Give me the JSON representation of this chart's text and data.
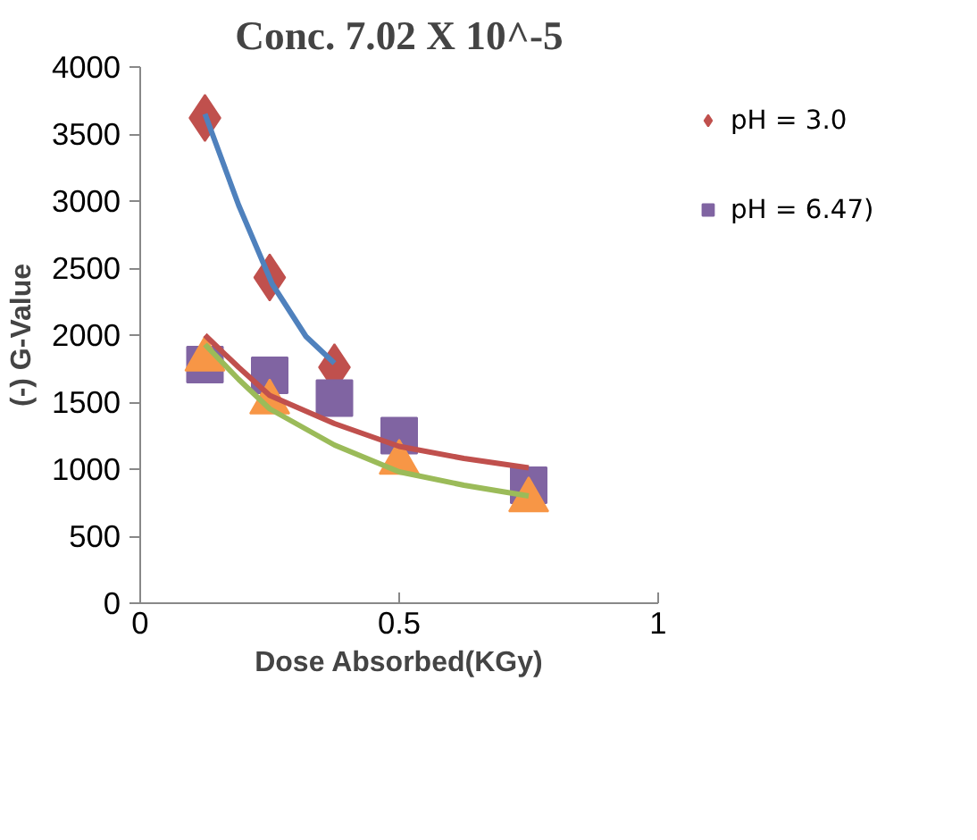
{
  "chart_data": {
    "type": "scatter",
    "title": "Conc. 7.02 X 10^-5",
    "xlabel": "Dose Absorbed(KGy)",
    "ylabel": "(-) G-Value",
    "xlim": [
      0,
      1
    ],
    "xticks": [
      0,
      0.5,
      1
    ],
    "ylim": [
      0,
      4000
    ],
    "yticks": [
      0,
      500,
      1000,
      1500,
      2000,
      2500,
      3000,
      3500,
      4000
    ],
    "grid": false,
    "legend": "top right",
    "series": [
      {
        "type": "line",
        "color": "#4f81bd",
        "marker": "none",
        "x": [
          0.125,
          0.19,
          0.255,
          0.32,
          0.375
        ],
        "values": [
          3650,
          2970,
          2380,
          1990,
          1790
        ]
      },
      {
        "type": "line",
        "color": "#c0504d",
        "marker": "none",
        "x": [
          0.125,
          0.19,
          0.25,
          0.375,
          0.5,
          0.625,
          0.75
        ],
        "values": [
          2000,
          1760,
          1550,
          1340,
          1170,
          1080,
          1010
        ]
      },
      {
        "type": "line",
        "color": "#9bbb59",
        "marker": "none",
        "x": [
          0.125,
          0.19,
          0.25,
          0.375,
          0.5,
          0.625,
          0.75
        ],
        "values": [
          1930,
          1670,
          1450,
          1180,
          980,
          880,
          800
        ]
      },
      {
        "name": "pH = 3.0",
        "color": "#c0504d",
        "marker": "diamond",
        "x": [
          0.125,
          0.25,
          0.375
        ],
        "values": [
          3620,
          2430,
          1760
        ]
      },
      {
        "name": "pH = 6.47)",
        "color": "#8064a2",
        "marker": "square",
        "x": [
          0.125,
          0.25,
          0.375,
          0.5,
          0.75
        ],
        "values": [
          1780,
          1700,
          1530,
          1250,
          880
        ]
      },
      {
        "color": "#f79646",
        "marker": "triangle",
        "x": [
          0.125,
          0.25,
          0.5,
          0.75
        ],
        "values": [
          1820,
          1500,
          1050,
          770
        ]
      }
    ]
  }
}
